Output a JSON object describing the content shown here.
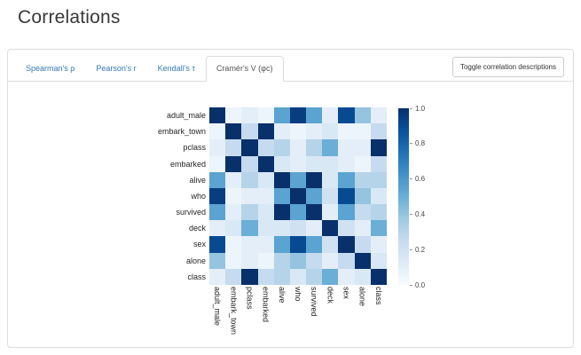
{
  "page": {
    "title": "Correlations"
  },
  "tabs": [
    {
      "label": "Spearman's ρ",
      "active": false
    },
    {
      "label": "Pearson's r",
      "active": false
    },
    {
      "label": "Kendall's τ",
      "active": false
    },
    {
      "label": "Cramér's V (φc)",
      "active": true
    }
  ],
  "toolbar": {
    "toggle_button_label": "Toggle correlation descriptions"
  },
  "chart_data": {
    "type": "heatmap",
    "active_metric": "Cramér's V (φc)",
    "variables": [
      "adult_male",
      "embark_town",
      "pclass",
      "embarked",
      "alive",
      "who",
      "survived",
      "deck",
      "sex",
      "alone",
      "class"
    ],
    "matrix": [
      [
        1.0,
        0.05,
        0.1,
        0.05,
        0.55,
        0.95,
        0.55,
        0.1,
        0.9,
        0.4,
        0.1
      ],
      [
        0.05,
        1.0,
        0.25,
        1.0,
        0.1,
        0.05,
        0.1,
        0.15,
        0.05,
        0.05,
        0.25
      ],
      [
        0.1,
        0.25,
        1.0,
        0.25,
        0.3,
        0.1,
        0.3,
        0.5,
        0.1,
        0.1,
        1.0
      ],
      [
        0.05,
        1.0,
        0.25,
        1.0,
        0.15,
        0.1,
        0.15,
        0.15,
        0.1,
        0.05,
        0.25
      ],
      [
        0.55,
        0.1,
        0.3,
        0.15,
        1.0,
        0.55,
        1.0,
        0.15,
        0.55,
        0.3,
        0.3
      ],
      [
        0.95,
        0.05,
        0.1,
        0.1,
        0.55,
        1.0,
        0.55,
        0.2,
        0.9,
        0.4,
        0.15
      ],
      [
        0.55,
        0.1,
        0.3,
        0.15,
        1.0,
        0.55,
        1.0,
        0.1,
        0.55,
        0.25,
        0.3
      ],
      [
        0.1,
        0.15,
        0.5,
        0.15,
        0.15,
        0.2,
        0.1,
        1.0,
        0.2,
        0.1,
        0.5
      ],
      [
        0.9,
        0.05,
        0.1,
        0.1,
        0.55,
        0.9,
        0.55,
        0.2,
        1.0,
        0.25,
        0.1
      ],
      [
        0.4,
        0.05,
        0.1,
        0.05,
        0.3,
        0.4,
        0.25,
        0.1,
        0.25,
        1.0,
        0.15
      ],
      [
        0.1,
        0.25,
        1.0,
        0.25,
        0.3,
        0.15,
        0.3,
        0.5,
        0.1,
        0.15,
        1.0
      ]
    ],
    "vmin": 0.0,
    "vmax": 1.0,
    "colorbar_ticks": [
      "1.0",
      "0.8",
      "0.6",
      "0.4",
      "0.2",
      "0.0"
    ],
    "colormap": "Blues",
    "colormap_stops": [
      "#f7fbff",
      "#deebf7",
      "#c6dbef",
      "#9ecae1",
      "#6baed6",
      "#4292c6",
      "#2171b5",
      "#08519c",
      "#08306b"
    ],
    "legend_position": "right",
    "grid": false
  },
  "colors": {
    "link": "#337ab7",
    "active_tab_text": "#555555",
    "panel_border": "#dddddd",
    "heading_text": "#383838",
    "heatmap_high": "#08306b",
    "heatmap_low": "#f7fbff"
  }
}
